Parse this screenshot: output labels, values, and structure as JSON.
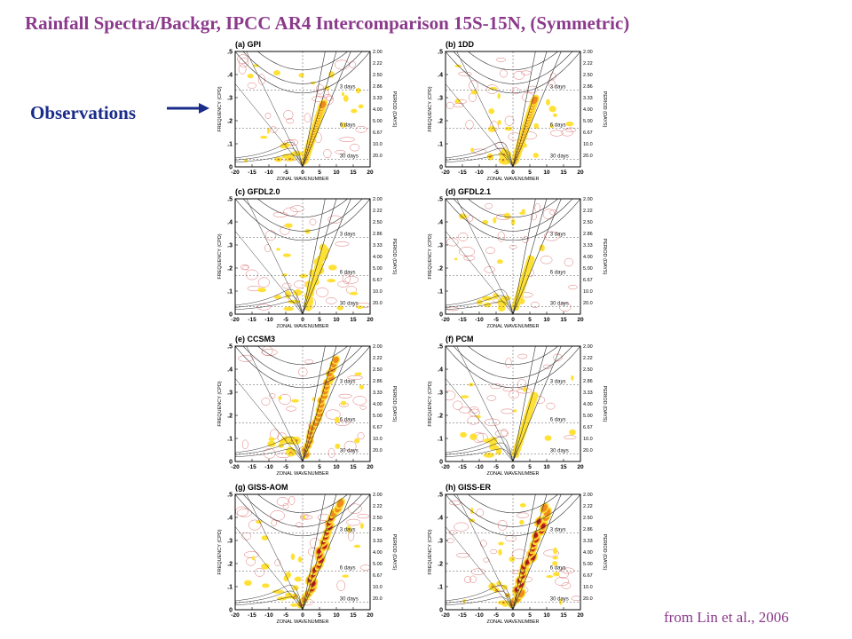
{
  "title": "Rainfall  Spectra/Backgr, IPCC AR4 Intercomparison 15S-15N,  (Symmetric)",
  "observations_label": "Observations",
  "credit": "from Lin et al., 2006",
  "colors": {
    "title": "#8b3a8b",
    "observations": "#1a2c8a",
    "yellow": "#ffe135",
    "orange": "#f08a1c",
    "red": "#c0141b",
    "contour": "#e07070"
  },
  "chart_data": {
    "type": "heatmap",
    "xlabel": "ZONAL WAVENUMBER",
    "ylabel": "FREQUENCY (CPD)",
    "ylabel_right": "PERIOD (DAYS)",
    "xlim": [
      -20,
      20
    ],
    "ylim": [
      0,
      0.5
    ],
    "x_ticks": [
      "-20",
      "-15",
      "-10",
      "-5",
      "0",
      "5",
      "10",
      "15",
      "20"
    ],
    "y_ticks": [
      "0",
      ".1",
      ".2",
      ".3",
      ".4",
      ".5"
    ],
    "period_ticks": [
      "2.00",
      "2.22",
      "2.50",
      "2.86",
      "3.33",
      "4.00",
      "5.00",
      "6.67",
      "10.0",
      "20.0"
    ],
    "period_annotations": [
      "3 days",
      "6 days",
      "30 days"
    ],
    "panels": [
      {
        "label": "(a) GPI"
      },
      {
        "label": "(b) 1DD"
      },
      {
        "label": "(c) GFDL2.0"
      },
      {
        "label": "(d) GFDL2.1"
      },
      {
        "label": "(e) CCSM3"
      },
      {
        "label": "(f) PCM"
      },
      {
        "label": "(g) GISS-AOM"
      },
      {
        "label": "(h) GISS-ER"
      }
    ]
  }
}
